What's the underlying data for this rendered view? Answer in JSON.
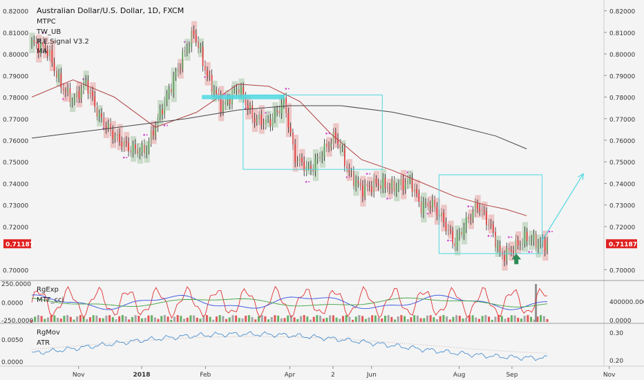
{
  "header": {
    "symbol_title": "Australian Dollar/U.S. Dollar, 1D, FXCM",
    "studies": [
      "MTPC",
      "TW_UB",
      "R.E.Signal V3.2",
      "MA"
    ]
  },
  "chart_data": [
    {
      "type": "candlestick",
      "pane": "price",
      "title": "Australian Dollar/U.S. Dollar, 1D, FXCM",
      "ylim": [
        0.695,
        0.825
      ],
      "right_axis_ticks": [
        "0.82000",
        "0.81000",
        "0.80000",
        "0.79000",
        "0.78000",
        "0.77000",
        "0.76000",
        "0.75000",
        "0.74000",
        "0.73000",
        "0.72000",
        "0.70000"
      ],
      "left_axis_ticks": [
        "0.82000",
        "0.81000",
        "0.80000",
        "0.79000",
        "0.78000",
        "0.77000",
        "0.76000",
        "0.75000",
        "0.74000",
        "0.73000",
        "0.72000",
        "0.70000"
      ],
      "last_price_label": "0.71187",
      "time_labels": [
        "Nov",
        "2018",
        "Feb",
        "Apr",
        "2",
        "Jun",
        "Aug",
        "Sep",
        "Nov"
      ],
      "time_label_positions": [
        0.122,
        0.22,
        0.319,
        0.45,
        0.517,
        0.577,
        0.713,
        0.795,
        0.946
      ],
      "price_path": [
        [
          0.0,
          0.805
        ],
        [
          0.03,
          0.802
        ],
        [
          0.055,
          0.786
        ],
        [
          0.08,
          0.778
        ],
        [
          0.105,
          0.787
        ],
        [
          0.13,
          0.771
        ],
        [
          0.16,
          0.762
        ],
        [
          0.19,
          0.756
        ],
        [
          0.22,
          0.755
        ],
        [
          0.245,
          0.77
        ],
        [
          0.27,
          0.785
        ],
        [
          0.295,
          0.8
        ],
        [
          0.315,
          0.81
        ],
        [
          0.34,
          0.79
        ],
        [
          0.37,
          0.775
        ],
        [
          0.4,
          0.785
        ],
        [
          0.43,
          0.77
        ],
        [
          0.46,
          0.768
        ],
        [
          0.49,
          0.778
        ],
        [
          0.51,
          0.752
        ],
        [
          0.54,
          0.746
        ],
        [
          0.565,
          0.755
        ],
        [
          0.59,
          0.762
        ],
        [
          0.615,
          0.745
        ],
        [
          0.64,
          0.737
        ],
        [
          0.67,
          0.74
        ],
        [
          0.7,
          0.738
        ],
        [
          0.735,
          0.741
        ],
        [
          0.755,
          0.729
        ],
        [
          0.775,
          0.731
        ],
        [
          0.8,
          0.722
        ],
        [
          0.82,
          0.712
        ],
        [
          0.845,
          0.723
        ],
        [
          0.865,
          0.73
        ],
        [
          0.89,
          0.72
        ],
        [
          0.91,
          0.706
        ],
        [
          0.935,
          0.71
        ],
        [
          0.96,
          0.715
        ],
        [
          0.985,
          0.712
        ]
      ],
      "moving_averages": [
        {
          "color": "#b04040",
          "points": [
            [
              0.0,
              0.78
            ],
            [
              0.08,
              0.788
            ],
            [
              0.16,
              0.78
            ],
            [
              0.24,
              0.766
            ],
            [
              0.32,
              0.773
            ],
            [
              0.4,
              0.786
            ],
            [
              0.46,
              0.785
            ],
            [
              0.52,
              0.778
            ],
            [
              0.58,
              0.763
            ],
            [
              0.64,
              0.751
            ],
            [
              0.7,
              0.746
            ],
            [
              0.76,
              0.74
            ],
            [
              0.82,
              0.734
            ],
            [
              0.88,
              0.73
            ],
            [
              0.92,
              0.728
            ],
            [
              0.96,
              0.725
            ]
          ]
        },
        {
          "color": "#444444",
          "points": [
            [
              0.0,
              0.761
            ],
            [
              0.1,
              0.764
            ],
            [
              0.2,
              0.767
            ],
            [
              0.3,
              0.77
            ],
            [
              0.4,
              0.774
            ],
            [
              0.5,
              0.776
            ],
            [
              0.6,
              0.776
            ],
            [
              0.7,
              0.773
            ],
            [
              0.8,
              0.768
            ],
            [
              0.9,
              0.762
            ],
            [
              0.96,
              0.756
            ]
          ]
        }
      ],
      "annotations": [
        {
          "kind": "rectangle",
          "color": "#4dd8e0",
          "x": [
            0.41,
            0.68
          ],
          "y": [
            0.7465,
            0.781
          ]
        },
        {
          "kind": "rectangle",
          "color": "#4dd8e0",
          "x": [
            0.79,
            0.99
          ],
          "y": [
            0.7075,
            0.744
          ]
        },
        {
          "kind": "highlight-band",
          "color": "#4dd8e0",
          "x": [
            0.33,
            0.49
          ],
          "y": [
            0.779,
            0.781
          ]
        },
        {
          "kind": "arrow",
          "color": "#4dd8e0",
          "from": [
            0.99,
            0.7135
          ],
          "to": [
            1.07,
            0.7445
          ]
        },
        {
          "kind": "up-arrow",
          "color": "#2e8b57",
          "at": [
            0.94,
            0.7045
          ]
        }
      ]
    },
    {
      "type": "line",
      "pane": "oscillator",
      "labels": [
        "RgExp",
        "MTF_cci"
      ],
      "left_axis_ticks": [
        "250.0000",
        "0.0000",
        "-250.0000"
      ],
      "right_axis_ticks": [
        "400000.0000",
        "0.0000"
      ],
      "series_colors": [
        "#e03030",
        "#3050e0",
        "#40a040"
      ],
      "histogram_colors": [
        "#e03030",
        "#40a040",
        "#909090"
      ]
    },
    {
      "type": "line",
      "pane": "volatility",
      "labels": [
        "RgMov",
        "ATR"
      ],
      "left_axis_ticks": [
        "0.0050",
        "0.0000"
      ],
      "right_axis_ticks": [
        "0.30",
        "0.20"
      ],
      "series_colors": [
        "#4a90d0"
      ]
    }
  ],
  "colors": {
    "background": "#f4f4f4",
    "bull_candle": "#5fa05a",
    "bear_candle": "#e04040",
    "bull_box": "#a7c7a7",
    "bear_box": "#e8a0a0",
    "price_label_bg": "#e02020",
    "signal_dots": "#d040d0",
    "highlight": "#4dd8e0"
  }
}
